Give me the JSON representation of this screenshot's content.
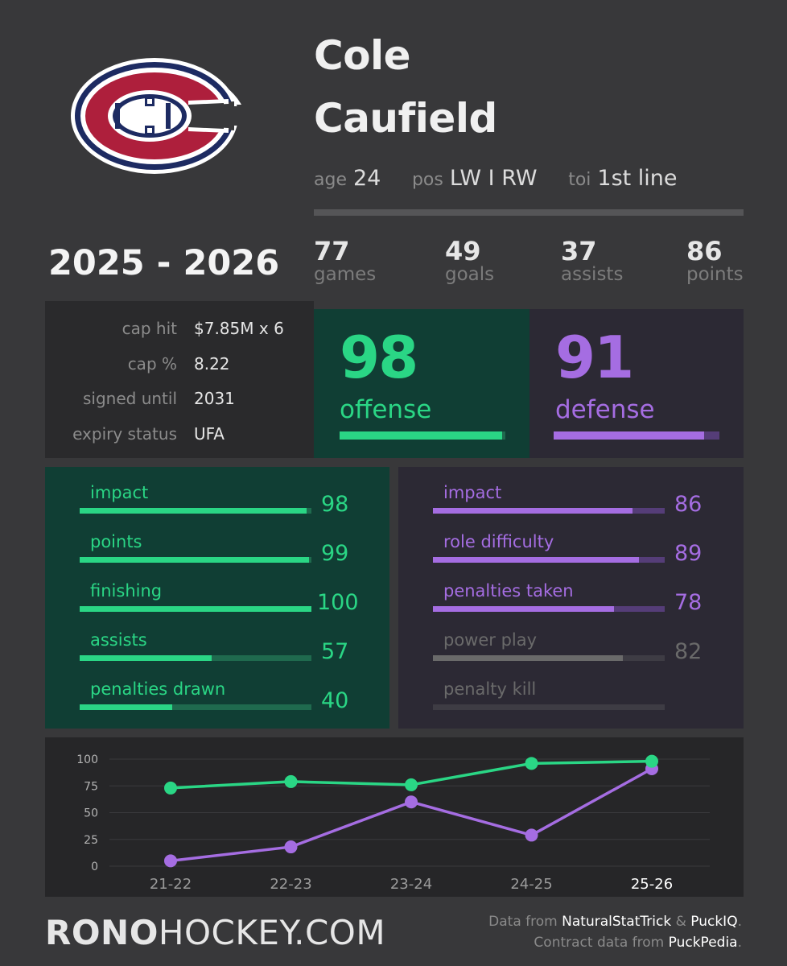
{
  "player": {
    "first_name": "Cole",
    "last_name": "Caufield",
    "age_label": "age",
    "age": "24",
    "pos_label": "pos",
    "pos": "LW I RW",
    "toi_label": "toi",
    "toi": "1st line"
  },
  "team_logo": {
    "icon": "montreal-canadiens-logo",
    "letters": "CH"
  },
  "season": "2025 - 2026",
  "stats": [
    {
      "value": "77",
      "label": "games"
    },
    {
      "value": "49",
      "label": "goals"
    },
    {
      "value": "37",
      "label": "assists"
    },
    {
      "value": "86",
      "label": "points"
    }
  ],
  "contract": [
    {
      "label": "cap hit",
      "value": "$7.85M x 6"
    },
    {
      "label": "cap %",
      "value": "8.22"
    },
    {
      "label": "signed until",
      "value": "2031"
    },
    {
      "label": "expiry status",
      "value": "UFA"
    }
  ],
  "ratings": {
    "offense": {
      "value": "98",
      "label": "offense",
      "fraction": 0.98
    },
    "defense": {
      "value": "91",
      "label": "defense",
      "fraction": 0.91
    }
  },
  "offense_breakdown": [
    {
      "label": "impact",
      "value": "98",
      "fraction": 0.98
    },
    {
      "label": "points",
      "value": "99",
      "fraction": 0.99
    },
    {
      "label": "finishing",
      "value": "100",
      "fraction": 1.0
    },
    {
      "label": "assists",
      "value": "57",
      "fraction": 0.57
    },
    {
      "label": "penalties drawn",
      "value": "40",
      "fraction": 0.4
    }
  ],
  "defense_breakdown": [
    {
      "label": "impact",
      "value": "86",
      "fraction": 0.86,
      "muted": false
    },
    {
      "label": "role difficulty",
      "value": "89",
      "fraction": 0.89,
      "muted": false
    },
    {
      "label": "penalties taken",
      "value": "78",
      "fraction": 0.78,
      "muted": false
    },
    {
      "label": "power play",
      "value": "82",
      "fraction": 0.82,
      "muted": true
    },
    {
      "label": "penalty kill",
      "value": "",
      "fraction": 0,
      "muted": true
    }
  ],
  "chart_data": {
    "type": "line",
    "categories": [
      "21-22",
      "22-23",
      "23-24",
      "24-25",
      "25-26"
    ],
    "highlight_category": "25-26",
    "y_ticks": [
      0,
      25,
      50,
      75,
      100
    ],
    "ylim": [
      0,
      100
    ],
    "grid": true,
    "series": [
      {
        "values": [
          73,
          79,
          76,
          96,
          98
        ],
        "color": "#2ad685"
      },
      {
        "values": [
          5,
          18,
          60,
          29,
          91
        ],
        "color": "#a56de2"
      }
    ]
  },
  "footer": {
    "brand_bold": "RONO",
    "brand_rest": "HOCKEY.COM",
    "credit_line1_prefix": "Data from ",
    "credit_source1": "NaturalStatTrick",
    "credit_amp": " & ",
    "credit_source2": "PuckIQ",
    "credit_line1_suffix": ".",
    "credit_line2_prefix": "Contract data from ",
    "credit_source3": "PuckPedia",
    "credit_line2_suffix": "."
  },
  "colors": {
    "offense": "#2ad685",
    "defense": "#a56de2",
    "muted": "#6a6a6a",
    "background": "#38383a"
  }
}
